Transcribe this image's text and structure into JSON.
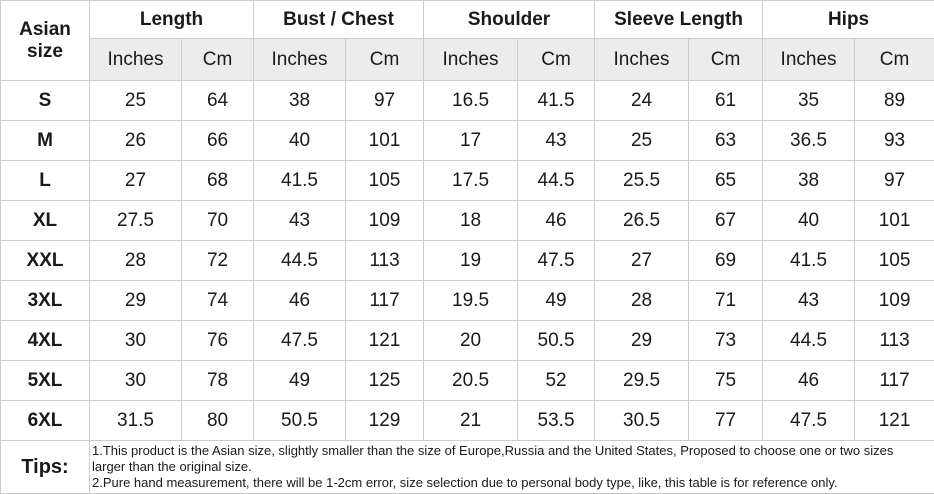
{
  "colors": {
    "accent_red": "#ff0000",
    "header_band_bg": "#ececec",
    "border": "#cccccc",
    "text": "#1a1a1a"
  },
  "chart_data": {
    "type": "table",
    "title": "Asian size garment measurement chart",
    "corner_label": "Asian size",
    "column_groups": [
      "Length",
      "Bust / Chest",
      "Shoulder",
      "Sleeve Length",
      "Hips"
    ],
    "unit_labels": {
      "inches": "Inches",
      "cm": "Cm"
    },
    "rows": [
      {
        "size": "S",
        "values": [
          25,
          64,
          38,
          97,
          16.5,
          41.5,
          24,
          61,
          35,
          89
        ]
      },
      {
        "size": "M",
        "values": [
          26,
          66,
          40,
          101,
          17,
          43,
          25,
          63,
          36.5,
          93
        ]
      },
      {
        "size": "L",
        "values": [
          27,
          68,
          41.5,
          105,
          17.5,
          44.5,
          25.5,
          65,
          38,
          97
        ]
      },
      {
        "size": "XL",
        "values": [
          27.5,
          70,
          43,
          109,
          18,
          46,
          26.5,
          67,
          40,
          101
        ]
      },
      {
        "size": "XXL",
        "values": [
          28,
          72,
          44.5,
          113,
          19,
          47.5,
          27,
          69,
          41.5,
          105
        ]
      },
      {
        "size": "3XL",
        "values": [
          29,
          74,
          46,
          117,
          19.5,
          49,
          28,
          71,
          43,
          109
        ]
      },
      {
        "size": "4XL",
        "values": [
          30,
          76,
          47.5,
          121,
          20,
          50.5,
          29,
          73,
          44.5,
          113
        ]
      },
      {
        "size": "5XL",
        "values": [
          30,
          78,
          49,
          125,
          20.5,
          52,
          29.5,
          75,
          46,
          117
        ]
      },
      {
        "size": "6XL",
        "values": [
          31.5,
          80,
          50.5,
          129,
          21,
          53.5,
          30.5,
          77,
          47.5,
          121
        ]
      }
    ],
    "tips": {
      "label": "Tips:",
      "lines": [
        "1.This product is the Asian size, slightly smaller than the size of Europe,Russia and the United States, Proposed to choose one or two sizes larger than the original size.",
        "2.Pure hand measurement, there will be 1-2cm error, size selection due to personal body type, like, this table is for reference only."
      ]
    }
  }
}
